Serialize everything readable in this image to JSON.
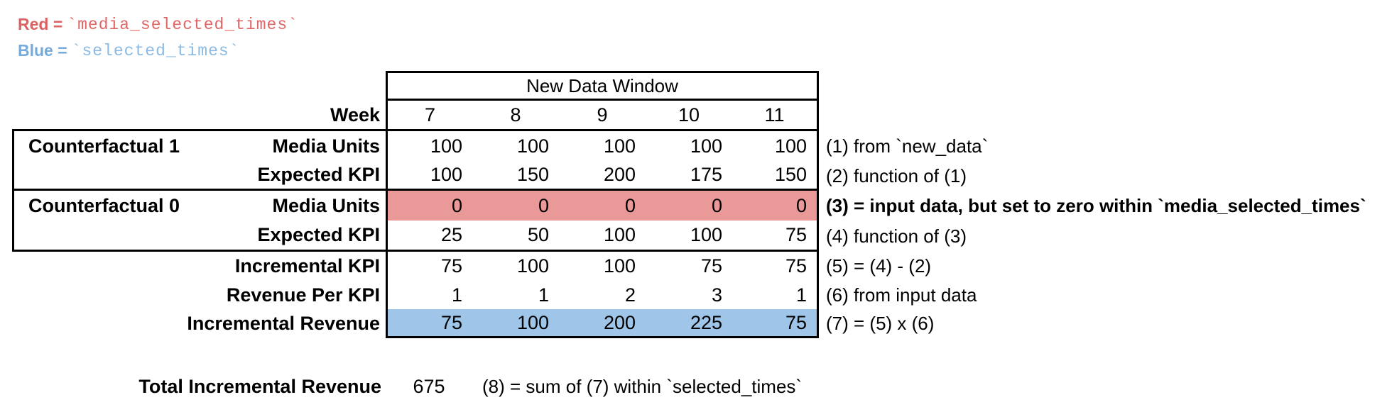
{
  "legend": {
    "red": {
      "prefix": "Red =",
      "code": "`media_selected_times`"
    },
    "blue": {
      "prefix": "Blue =",
      "code": "`selected_times`"
    }
  },
  "colors": {
    "red_text": "#dc5f62",
    "red_code": "#e06666",
    "blue_text": "#74abdf",
    "blue_code": "#8cbae2",
    "red_fill": "#ea9999",
    "blue_fill": "#9fc5e8"
  },
  "table": {
    "window_header": "New Data Window",
    "week_label": "Week",
    "weeks": [
      "7",
      "8",
      "9",
      "10",
      "11"
    ],
    "rows": [
      {
        "group": "Counterfactual 1",
        "label": "Media Units",
        "values": [
          "100",
          "100",
          "100",
          "100",
          "100"
        ],
        "note": "(1) from `new_data`"
      },
      {
        "group": "",
        "label": "Expected KPI",
        "values": [
          "100",
          "150",
          "200",
          "175",
          "150"
        ],
        "note": "(2) function of (1)"
      },
      {
        "group": "Counterfactual 0",
        "label": "Media Units",
        "values": [
          "0",
          "0",
          "0",
          "0",
          "0"
        ],
        "note": "(3) = input data, but set to zero within `media_selected_times`"
      },
      {
        "group": "",
        "label": "Expected KPI",
        "values": [
          "25",
          "50",
          "100",
          "100",
          "75"
        ],
        "note": "(4) function of (3)"
      },
      {
        "group": "",
        "label": "Incremental KPI",
        "values": [
          "75",
          "100",
          "100",
          "75",
          "75"
        ],
        "note": "(5) = (4) - (2)"
      },
      {
        "group": "",
        "label": "Revenue Per KPI",
        "values": [
          "1",
          "1",
          "2",
          "3",
          "1"
        ],
        "note": "(6) from input data"
      },
      {
        "group": "",
        "label": "Incremental Revenue",
        "values": [
          "75",
          "100",
          "200",
          "225",
          "75"
        ],
        "note": "(7) = (5) x (6)"
      }
    ]
  },
  "total": {
    "label": "Total Incremental Revenue",
    "value": "675",
    "note": "(8) = sum of (7) within `selected_times`"
  }
}
